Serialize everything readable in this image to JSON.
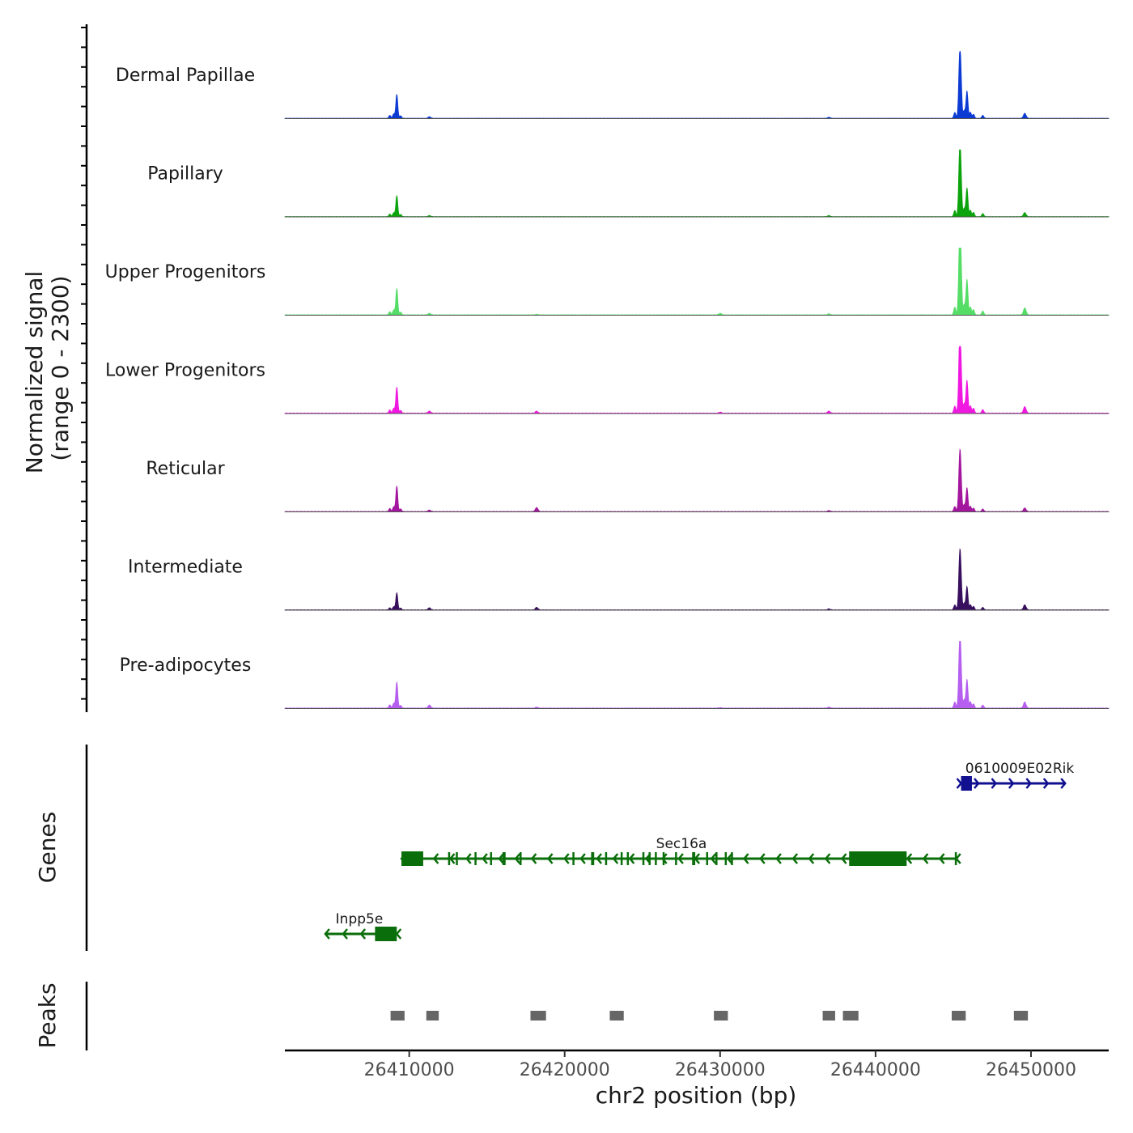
{
  "chart_data": {
    "type": "area",
    "title": "",
    "chromosome": "chr2",
    "xlabel": "chr2 position (bp)",
    "xlim": [
      26402000,
      26455000
    ],
    "x_ticks": [
      26410000,
      26420000,
      26430000,
      26440000,
      26450000
    ],
    "x_tick_labels": [
      "26410000",
      "26420000",
      "26430000",
      "26440000",
      "26450000"
    ],
    "coverage_ylabel_line1": "Normalized signal",
    "coverage_ylabel_line2": "(range 0 - 2300)",
    "ylim": [
      0,
      2300
    ],
    "peak_positions": [
      26409200,
      26411300,
      26418200,
      26423300,
      26430000,
      26437000,
      26438400,
      26445400,
      26449600
    ],
    "series": [
      {
        "name": "Dermal Papillae",
        "color": "#0c3bd4",
        "heights": [
          0.48,
          0.03,
          0.0,
          0.0,
          0.0,
          0.02,
          0.0,
          1.0,
          0.1
        ],
        "background": 0.008
      },
      {
        "name": "Papillary",
        "color": "#0ca30c",
        "heights": [
          0.42,
          0.02,
          0.0,
          0.0,
          0.0,
          0.02,
          0.0,
          1.05,
          0.08
        ],
        "background": 0.008
      },
      {
        "name": "Upper Progenitors",
        "color": "#55dd66",
        "heights": [
          0.53,
          0.03,
          0.01,
          0.0,
          0.03,
          0.02,
          0.0,
          1.3,
          0.14
        ],
        "background": 0.01
      },
      {
        "name": "Lower Progenitors",
        "color": "#f018e0",
        "heights": [
          0.52,
          0.04,
          0.04,
          0.0,
          0.02,
          0.04,
          0.0,
          1.2,
          0.13
        ],
        "background": 0.012
      },
      {
        "name": "Reticular",
        "color": "#a3169e",
        "heights": [
          0.51,
          0.03,
          0.08,
          0.0,
          0.0,
          0.02,
          0.0,
          0.87,
          0.07
        ],
        "background": 0.01
      },
      {
        "name": "Intermediate",
        "color": "#380f5e",
        "heights": [
          0.34,
          0.04,
          0.05,
          0.0,
          0.0,
          0.02,
          0.0,
          0.85,
          0.1
        ],
        "background": 0.01
      },
      {
        "name": "Pre-adipocytes",
        "color": "#b55ef0",
        "heights": [
          0.52,
          0.06,
          0.02,
          0.0,
          0.01,
          0.02,
          0.0,
          1.05,
          0.12
        ],
        "background": 0.012
      }
    ],
    "genes_ylabel": "Genes",
    "genes": [
      {
        "name": "0610009E02Rik",
        "strand": "+",
        "start": 26445500,
        "end": 26452200,
        "color": "#101090",
        "utr": [
          [
            26445500,
            26446200
          ]
        ],
        "exons": [
          [
            26445500,
            26446200
          ]
        ]
      },
      {
        "name": "Sec16a",
        "strand": "-",
        "start": 26409500,
        "end": 26445200,
        "color": "#0a6e0a",
        "utr": [
          [
            26409500,
            26410900
          ],
          [
            26438300,
            26442000
          ]
        ],
        "exons": [
          [
            26409500,
            26410900
          ],
          [
            26412500,
            26412600
          ],
          [
            26413000,
            26413100
          ],
          [
            26414200,
            26414300
          ],
          [
            26415200,
            26415300
          ],
          [
            26416000,
            26416200
          ],
          [
            26417100,
            26417200
          ],
          [
            26420500,
            26420600
          ],
          [
            26421700,
            26421900
          ],
          [
            26422600,
            26422700
          ],
          [
            26423600,
            26423700
          ],
          [
            26424000,
            26424100
          ],
          [
            26425000,
            26425100
          ],
          [
            26425400,
            26425500
          ],
          [
            26425800,
            26425900
          ],
          [
            26426300,
            26426400
          ],
          [
            26427100,
            26427200
          ],
          [
            26428200,
            26428400
          ],
          [
            26429100,
            26429200
          ],
          [
            26429700,
            26429800
          ],
          [
            26430300,
            26430400
          ],
          [
            26430700,
            26430800
          ],
          [
            26438300,
            26442000
          ],
          [
            26445100,
            26445200
          ]
        ]
      },
      {
        "name": "Inpp5e",
        "strand": "-",
        "start": 26404600,
        "end": 26409200,
        "color": "#0a6e0a",
        "utr": [
          [
            26407800,
            26409200
          ]
        ],
        "exons": [
          [
            26407800,
            26409200
          ]
        ]
      }
    ],
    "peaks_ylabel": "Peaks",
    "peaks": [
      [
        26408800,
        26409700
      ],
      [
        26411100,
        26411900
      ],
      [
        26417800,
        26418800
      ],
      [
        26422900,
        26423800
      ],
      [
        26429600,
        26430500
      ],
      [
        26436600,
        26437400
      ],
      [
        26437900,
        26438900
      ],
      [
        26444900,
        26445800
      ],
      [
        26448900,
        26449800
      ]
    ]
  }
}
